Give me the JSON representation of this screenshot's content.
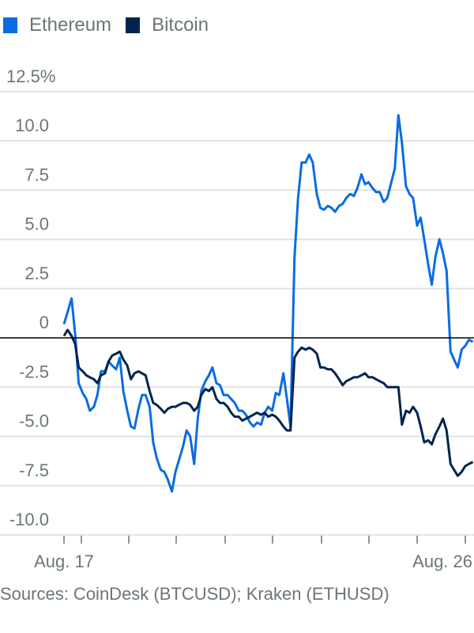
{
  "chart_data": {
    "type": "line",
    "title": "",
    "xlabel": "",
    "ylabel": "",
    "y_unit": "%",
    "ylim": [
      -10,
      12.5
    ],
    "y_ticks": [
      12.5,
      10,
      7.5,
      5,
      2.5,
      0,
      -2.5,
      -5,
      -7.5,
      -10
    ],
    "y_tick_labels": [
      "12.5%",
      "10.0",
      "7.5",
      "5.0",
      "2.5",
      "0",
      "-2.5",
      "-5.0",
      "-7.5",
      "-10.0"
    ],
    "x_unit": "day of August",
    "xlim": [
      17,
      26.2
    ],
    "x_tick_labels": [
      {
        "label": "Aug. 17",
        "x": 17
      },
      {
        "label": "Aug. 26",
        "x": 26
      }
    ],
    "grid": true,
    "legend_placement": "top-left",
    "x": [
      17.0,
      17.08,
      17.17,
      17.25,
      17.33,
      17.42,
      17.5,
      17.58,
      17.67,
      17.75,
      17.83,
      17.92,
      18.0,
      18.08,
      18.17,
      18.25,
      18.33,
      18.42,
      18.5,
      18.58,
      18.67,
      18.75,
      18.83,
      18.92,
      19.0,
      19.08,
      19.17,
      19.25,
      19.33,
      19.42,
      19.5,
      19.58,
      19.67,
      19.75,
      19.83,
      19.92,
      20.0,
      20.08,
      20.17,
      20.25,
      20.33,
      20.42,
      20.5,
      20.58,
      20.67,
      20.75,
      20.83,
      20.92,
      21.0,
      21.08,
      21.17,
      21.25,
      21.33,
      21.42,
      21.5,
      21.58,
      21.67,
      21.75,
      21.83,
      21.92,
      22.0,
      22.08,
      22.17,
      22.25,
      22.33,
      22.42,
      22.5,
      22.58,
      22.67,
      22.75,
      22.83,
      22.92,
      23.0,
      23.08,
      23.17,
      23.25,
      23.33,
      23.42,
      23.5,
      23.58,
      23.67,
      23.75,
      23.83,
      23.92,
      24.0,
      24.08,
      24.17,
      24.25,
      24.33,
      24.42,
      24.5,
      24.58,
      24.67,
      24.75,
      24.83,
      24.92,
      25.0,
      25.08,
      25.17,
      25.25,
      25.33,
      25.42,
      25.5,
      25.58,
      25.67,
      25.75,
      25.83,
      25.92,
      26.0,
      26.08,
      26.17
    ],
    "series": [
      {
        "name": "Ethereum",
        "color": "#0a6ce0",
        "values": [
          0.7,
          1.3,
          2.0,
          0.2,
          -2.3,
          -2.8,
          -3.1,
          -3.7,
          -3.5,
          -2.9,
          -1.7,
          -1.7,
          -1.2,
          -1.4,
          -1.6,
          -1.0,
          -2.7,
          -3.7,
          -4.5,
          -4.6,
          -3.6,
          -2.9,
          -2.9,
          -3.5,
          -5.3,
          -6.1,
          -6.7,
          -6.8,
          -7.2,
          -7.8,
          -6.8,
          -6.2,
          -5.5,
          -4.7,
          -5.0,
          -6.4,
          -4.1,
          -2.7,
          -2.2,
          -1.9,
          -1.5,
          -2.3,
          -2.4,
          -2.9,
          -2.9,
          -3.1,
          -3.3,
          -3.7,
          -3.7,
          -3.9,
          -4.3,
          -4.5,
          -4.3,
          -4.4,
          -3.8,
          -3.5,
          -3.7,
          -2.8,
          -2.9,
          -1.8,
          -3.1,
          -4.5,
          4.1,
          7.1,
          8.9,
          8.9,
          9.3,
          8.9,
          7.3,
          6.6,
          6.5,
          6.7,
          6.6,
          6.4,
          6.7,
          6.8,
          7.1,
          7.3,
          7.2,
          7.6,
          8.3,
          7.8,
          7.9,
          7.6,
          7.4,
          7.4,
          6.9,
          7.1,
          7.8,
          8.6,
          11.3,
          9.9,
          7.7,
          7.3,
          7.1,
          5.7,
          6.1,
          5.0,
          3.7,
          2.7,
          4.1,
          5.0,
          4.3,
          3.4,
          -0.7,
          -1.1,
          -1.5,
          -0.6,
          -0.4,
          -0.1,
          -0.2
        ]
      },
      {
        "name": "Bitcoin",
        "color": "#00244f",
        "values": [
          0.1,
          0.4,
          0.1,
          -0.3,
          -1.5,
          -1.7,
          -1.9,
          -2.0,
          -2.1,
          -2.3,
          -1.9,
          -1.8,
          -1.2,
          -0.9,
          -0.8,
          -0.7,
          -1.1,
          -1.4,
          -2.1,
          -1.8,
          -1.7,
          -1.8,
          -1.9,
          -2.7,
          -3.3,
          -3.4,
          -3.6,
          -3.8,
          -3.6,
          -3.5,
          -3.5,
          -3.4,
          -3.3,
          -3.3,
          -3.4,
          -3.7,
          -3.5,
          -2.9,
          -2.6,
          -2.7,
          -2.5,
          -3.1,
          -3.3,
          -3.3,
          -3.5,
          -3.8,
          -4.0,
          -4.0,
          -4.2,
          -4.1,
          -4.0,
          -3.9,
          -3.8,
          -3.9,
          -3.8,
          -4.0,
          -3.9,
          -4.0,
          -4.2,
          -4.5,
          -4.7,
          -4.7,
          -1.0,
          -0.7,
          -0.5,
          -0.6,
          -0.5,
          -0.6,
          -0.8,
          -1.5,
          -1.5,
          -1.6,
          -1.6,
          -1.8,
          -2.1,
          -2.4,
          -2.2,
          -2.1,
          -2.0,
          -2.0,
          -1.9,
          -1.8,
          -2.0,
          -2.0,
          -2.1,
          -2.2,
          -2.3,
          -2.5,
          -2.5,
          -2.5,
          -2.5,
          -4.4,
          -3.7,
          -3.8,
          -3.5,
          -3.8,
          -4.5,
          -5.3,
          -5.2,
          -5.4,
          -4.9,
          -4.5,
          -4.1,
          -4.7,
          -6.4,
          -6.7,
          -7.0,
          -6.8,
          -6.5,
          -6.4,
          -6.3
        ]
      }
    ],
    "source_note": "Sources: CoinDesk (BTCUSD); Kraken (ETHUSD)"
  }
}
